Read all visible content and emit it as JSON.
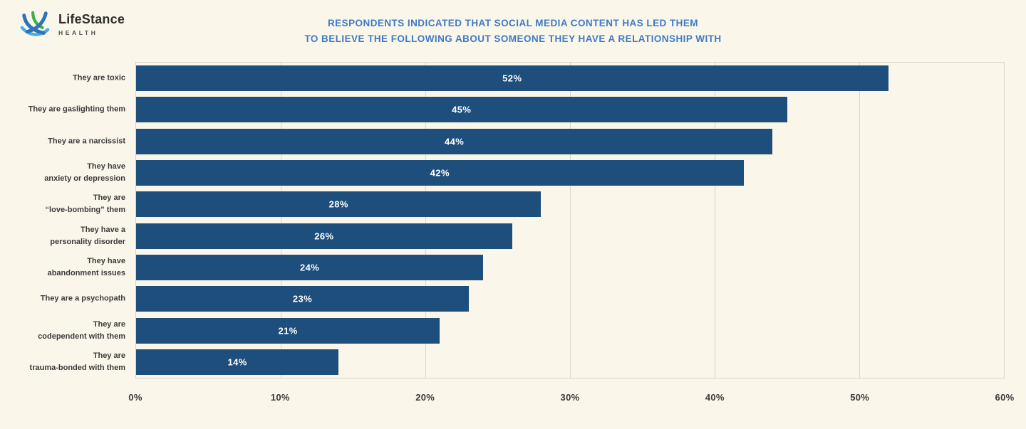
{
  "page": {
    "background": "#FBF6EA"
  },
  "logo": {
    "brand": "LifeStance",
    "subtitle": "HEALTH",
    "mark_colors": {
      "blue": "#2E73B8",
      "green": "#3FAE49",
      "light_blue": "#49ADE4"
    }
  },
  "title": {
    "line1": "RESPONDENTS INDICATED THAT SOCIAL MEDIA CONTENT HAS LED THEM",
    "line2": "TO BELIEVE THE FOLLOWING ABOUT SOMEONE THEY HAVE A RELATIONSHIP WITH",
    "color": "#3D7BC4"
  },
  "chart_data": {
    "type": "bar",
    "orientation": "horizontal",
    "title": "Respondents indicated that social media content has led them to believe the following about someone they have a relationship with",
    "categories": [
      "They are toxic",
      "They are gaslighting them",
      "They are a narcissist",
      "They have\nanxiety or depression",
      "They are\n“love-bombing” them",
      "They have a\npersonality disorder",
      "They have\nabandonment issues",
      "They are a psychopath",
      "They are\ncodependent with them",
      "They are\ntrauma-bonded with them"
    ],
    "values": [
      52,
      45,
      44,
      42,
      28,
      26,
      24,
      23,
      21,
      14
    ],
    "value_labels": [
      "52%",
      "45%",
      "44%",
      "42%",
      "28%",
      "26%",
      "24%",
      "23%",
      "21%",
      "14%"
    ],
    "x_ticks": [
      "0%",
      "10%",
      "20%",
      "30%",
      "40%",
      "50%",
      "60%"
    ],
    "xlim": [
      0,
      60
    ],
    "xlabel": "",
    "ylabel": "",
    "bar_color": "#1E4E7B",
    "value_label_color": "#FFFFFF",
    "grid": true,
    "gridline_color": "#D9D5C9",
    "legend": false
  }
}
